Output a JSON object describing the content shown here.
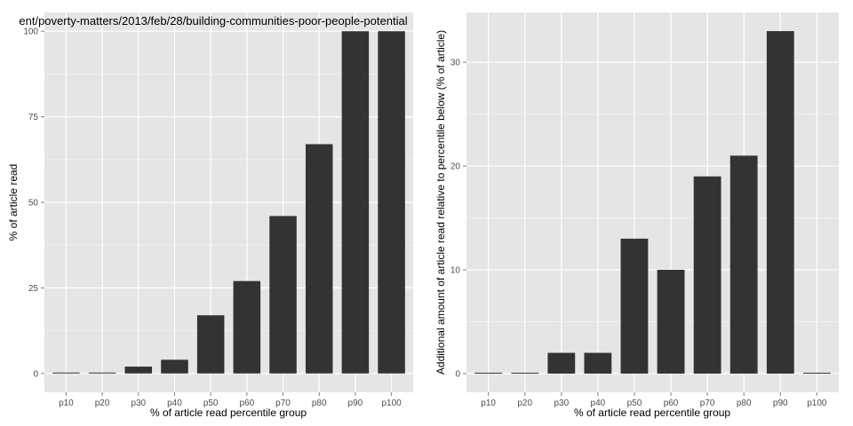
{
  "colors": {
    "panel_background": "#e5e5e5",
    "grid_major": "#ffffff",
    "grid_minor": "#f2f2f2",
    "bar_fill": "#333333",
    "tick_text": "#4d4d4d"
  },
  "chart_data": [
    {
      "type": "bar",
      "title": "ent/poverty-matters/2013/feb/28/building-communities-poor-people-potential",
      "xlabel": "% of article read percentile group",
      "ylabel": "% of article read",
      "categories": [
        "p10",
        "p20",
        "p30",
        "p40",
        "p50",
        "p60",
        "p70",
        "p80",
        "p90",
        "p100"
      ],
      "values": [
        0,
        0,
        2,
        4,
        17,
        27,
        46,
        67,
        100,
        100
      ],
      "ylim": [
        -5.5,
        105.5
      ],
      "yticks": [
        0,
        25,
        50,
        75,
        100
      ],
      "yminor": [
        12.5,
        37.5,
        62.5,
        87.5
      ],
      "grid": true
    },
    {
      "type": "bar",
      "title": "",
      "xlabel": "% of article read percentile group",
      "ylabel": "Additional amount of article read relative to percentile below (% of article)",
      "categories": [
        "p10",
        "p20",
        "p30",
        "p40",
        "p50",
        "p60",
        "p70",
        "p80",
        "p90",
        "p100"
      ],
      "values": [
        0,
        0,
        2,
        2,
        13,
        10,
        19,
        21,
        33,
        0
      ],
      "ylim": [
        -1.8,
        34.8
      ],
      "yticks": [
        0,
        10,
        20,
        30
      ],
      "yminor": [
        5,
        15,
        25
      ],
      "grid": true
    }
  ]
}
